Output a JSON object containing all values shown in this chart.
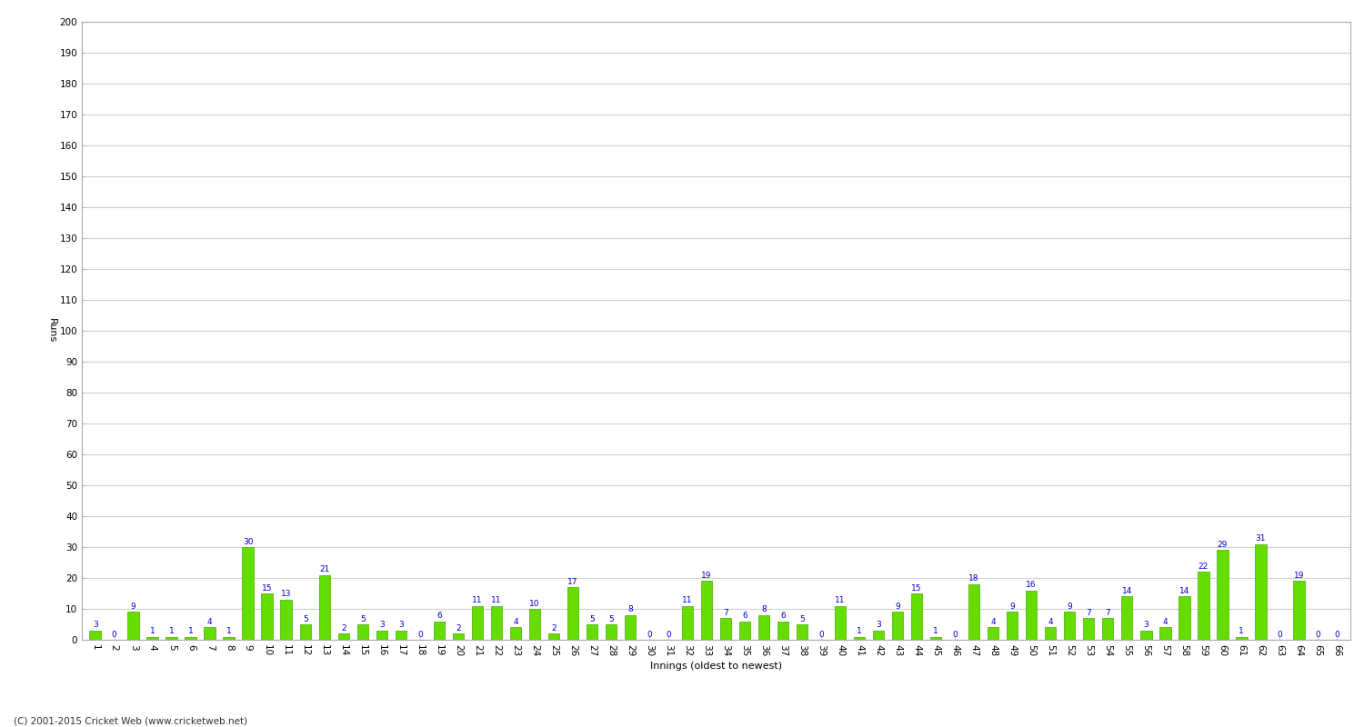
{
  "xlabel": "Innings (oldest to newest)",
  "ylabel": "Runs",
  "values": [
    3,
    0,
    9,
    1,
    1,
    1,
    4,
    1,
    30,
    15,
    13,
    5,
    21,
    2,
    5,
    3,
    3,
    0,
    6,
    2,
    11,
    11,
    4,
    10,
    2,
    17,
    5,
    5,
    8,
    0,
    0,
    11,
    19,
    7,
    6,
    8,
    6,
    5,
    0,
    11,
    1,
    3,
    9,
    15,
    1,
    0,
    18,
    4,
    9,
    16,
    4,
    9,
    7,
    7,
    14,
    3,
    4,
    14,
    22,
    29,
    1,
    31,
    0,
    19,
    0,
    0
  ],
  "labels": [
    "1",
    "2",
    "3",
    "4",
    "5",
    "6",
    "7",
    "8",
    "9",
    "10",
    "11",
    "12",
    "13",
    "14",
    "15",
    "16",
    "17",
    "18",
    "19",
    "20",
    "21",
    "22",
    "23",
    "24",
    "25",
    "26",
    "27",
    "28",
    "29",
    "30",
    "31",
    "32",
    "33",
    "34",
    "35",
    "36",
    "37",
    "38",
    "39",
    "40",
    "41",
    "42",
    "43",
    "44",
    "45",
    "46",
    "47",
    "48",
    "49",
    "50",
    "51",
    "52",
    "53",
    "54",
    "55",
    "56",
    "57",
    "58",
    "59",
    "60",
    "61",
    "62",
    "63",
    "64",
    "65",
    "66"
  ],
  "bar_color": "#66dd00",
  "bar_edge_color": "#44aa00",
  "label_color": "#0000cc",
  "background_color": "#ffffff",
  "grid_color": "#d0d0d0",
  "ylim": [
    0,
    200
  ],
  "yticks": [
    0,
    10,
    20,
    30,
    40,
    50,
    60,
    70,
    80,
    90,
    100,
    110,
    120,
    130,
    140,
    150,
    160,
    170,
    180,
    190,
    200
  ],
  "axis_fontsize": 8,
  "label_fontsize": 6.5,
  "tick_fontsize": 7.5,
  "footer": "(C) 2001-2015 Cricket Web (www.cricketweb.net)"
}
